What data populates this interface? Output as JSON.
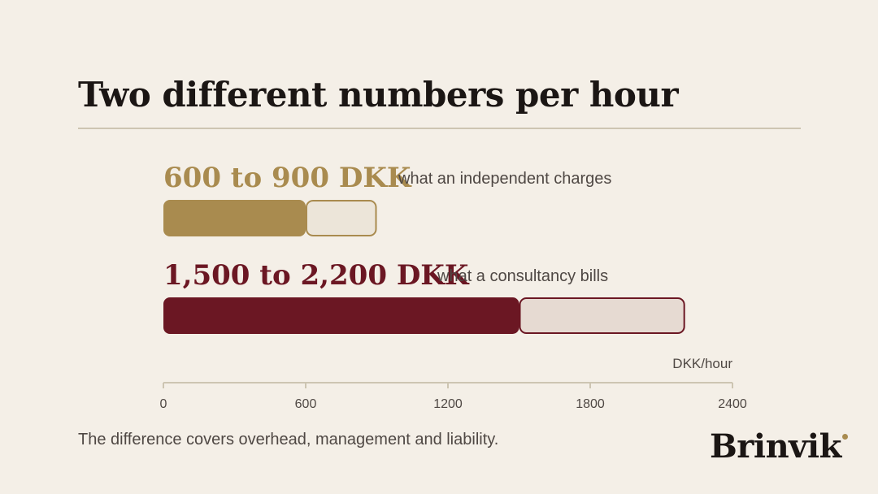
{
  "title": "Two different numbers per hour",
  "footnote": "The difference covers overhead, management and liability.",
  "brand": "Brinvik",
  "colors": {
    "background": "#f4efe7",
    "gold": "#a98b4f",
    "gold_light": "#ece5d9",
    "maroon": "#6b1723",
    "maroon_light": "#e6dad2",
    "text_dark": "#1b1614",
    "text_muted": "#4f4844"
  },
  "chart_data": {
    "type": "bar",
    "orientation": "horizontal",
    "series": [
      {
        "label": "600 to 900 DKK",
        "description": "what an independent charges",
        "low": 600,
        "high": 900,
        "color": "#a98b4f",
        "range_color": "#ece5d9"
      },
      {
        "label": "1,500 to 2,200 DKK",
        "description": "what a consultancy bills",
        "low": 1500,
        "high": 2200,
        "color": "#6b1723",
        "range_color": "#e6dad2"
      }
    ],
    "xlabel": "DKK/hour",
    "xlim": [
      0,
      2400
    ],
    "xticks": [
      0,
      600,
      1200,
      1800,
      2400
    ],
    "grid": false,
    "legend": "none"
  }
}
